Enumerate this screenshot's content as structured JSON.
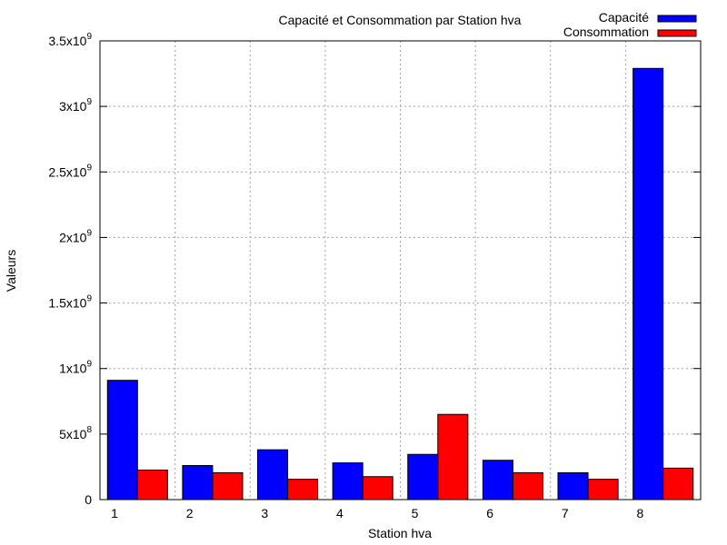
{
  "chart_data": {
    "type": "bar",
    "title": "Capacité et Consommation par Station hva",
    "xlabel": "Station hva",
    "ylabel": "Valeurs",
    "categories": [
      "1",
      "2",
      "3",
      "4",
      "5",
      "6",
      "7",
      "8"
    ],
    "series": [
      {
        "name": "Capacité",
        "color": "#0000ff",
        "values": [
          910000000,
          260000000,
          380000000,
          280000000,
          345000000,
          300000000,
          205000000,
          3290000000
        ]
      },
      {
        "name": "Consommation",
        "color": "#ff0000",
        "values": [
          225000000,
          205000000,
          155000000,
          175000000,
          650000000,
          205000000,
          155000000,
          240000000
        ]
      }
    ],
    "ylim": [
      0,
      3500000000
    ],
    "yticks": [
      {
        "value": 0,
        "mantissa": "0",
        "exp": ""
      },
      {
        "value": 500000000,
        "mantissa": "5x10",
        "exp": "8"
      },
      {
        "value": 1000000000,
        "mantissa": "1x10",
        "exp": "9"
      },
      {
        "value": 1500000000,
        "mantissa": "1.5x10",
        "exp": "9"
      },
      {
        "value": 2000000000,
        "mantissa": "2x10",
        "exp": "9"
      },
      {
        "value": 2500000000,
        "mantissa": "2.5x10",
        "exp": "9"
      },
      {
        "value": 3000000000,
        "mantissa": "3x10",
        "exp": "9"
      },
      {
        "value": 3500000000,
        "mantissa": "3.5x10",
        "exp": "9"
      }
    ],
    "grid": true,
    "legend_position": "top-right"
  }
}
